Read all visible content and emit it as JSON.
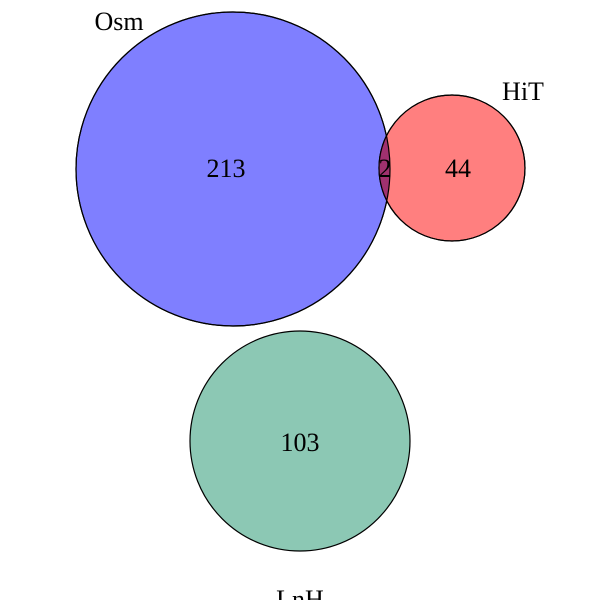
{
  "diagram": {
    "type": "venn",
    "sets": [
      {
        "id": "osm",
        "name": "Osm",
        "only_count": "213",
        "color": "#7f7fff"
      },
      {
        "id": "hit",
        "name": "HiT",
        "only_count": "44",
        "color": "#ff7f7f"
      },
      {
        "id": "lnh",
        "name": "LnH",
        "only_count": "103",
        "color": "#8cc8b4"
      }
    ],
    "intersections": [
      {
        "sets": [
          "osm",
          "hit"
        ],
        "count": "2",
        "color": "#a0316f"
      }
    ],
    "outline_color": "#000000"
  }
}
